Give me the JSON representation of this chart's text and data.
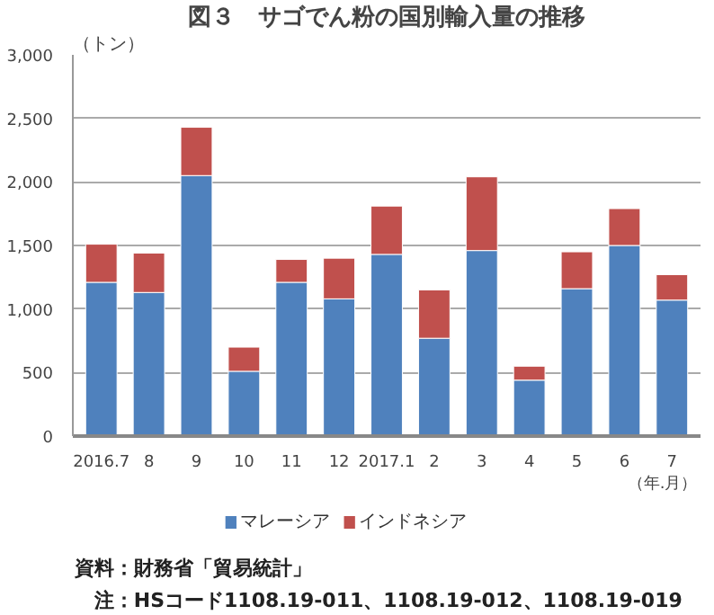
{
  "chart_data": {
    "type": "bar",
    "title": "図３　サゴでん粉の国別輸入量の推移",
    "ylabel": "（トン）",
    "xlabel": "（年.月）",
    "categories": [
      "2016.7",
      "8",
      "9",
      "10",
      "11",
      "12",
      "2017.1",
      "2",
      "3",
      "4",
      "5",
      "6",
      "7"
    ],
    "stacked": true,
    "series": [
      {
        "name": "マレーシア",
        "color": "#4f81bd",
        "values": [
          1210,
          1130,
          2050,
          510,
          1210,
          1080,
          1430,
          770,
          1460,
          440,
          1160,
          1500,
          1070
        ]
      },
      {
        "name": "インドネシア",
        "color": "#c0504d",
        "values": [
          300,
          310,
          380,
          190,
          180,
          320,
          380,
          380,
          580,
          110,
          290,
          290,
          200
        ]
      }
    ],
    "ylim": [
      0,
      3000
    ],
    "yticks": [
      {
        "value": 0,
        "label": "0"
      },
      {
        "value": 500,
        "label": "500"
      },
      {
        "value": 1000,
        "label": "1,000"
      },
      {
        "value": 1500,
        "label": "1,500"
      },
      {
        "value": 2000,
        "label": "2,000"
      },
      {
        "value": 2500,
        "label": "2,500"
      },
      {
        "value": 3000,
        "label": "3,000"
      }
    ],
    "grid": "y",
    "legend": "bottom",
    "annotations": [
      "資料：財務省「貿易統計」",
      "　注：HSコード1108.19-011、1108.19-012、1108.19-019"
    ]
  }
}
